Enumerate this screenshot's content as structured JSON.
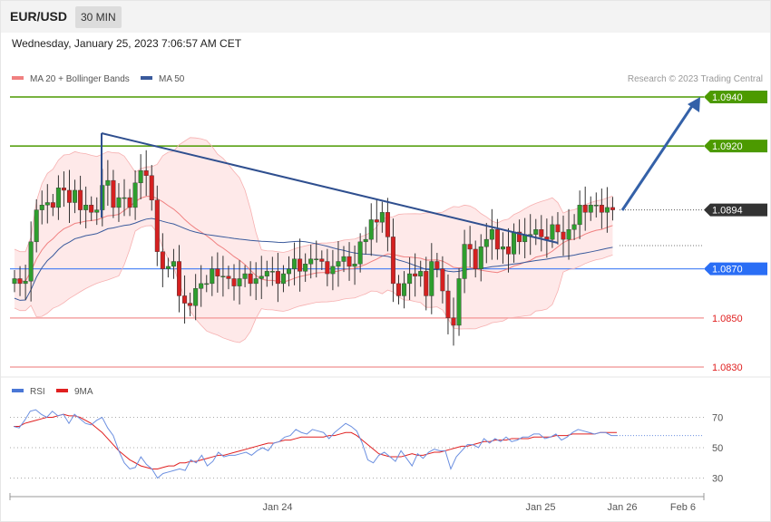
{
  "header": {
    "symbol": "EUR/USD",
    "timeframe": "30 MIN",
    "datetime": "Wednesday, January 25, 2023 7:06:57 AM CET"
  },
  "chart_data": [
    {
      "type": "candlestick",
      "title": "",
      "legend": [
        {
          "name": "MA 20 + Bollinger Bands",
          "color": "#f08080"
        },
        {
          "name": "MA 50",
          "color": "#3a5a9c"
        }
      ],
      "legend_position": "top-left",
      "credit": "Research © 2023 Trading Central",
      "y_range": [
        1.0828,
        1.095
      ],
      "x_ticks": [
        "Jan 24",
        "Jan 25",
        "Jan 26",
        "Feb 6"
      ],
      "levels": [
        {
          "value": 1.094,
          "label": "1.0940",
          "kind": "resistance",
          "color": "#4c9a00"
        },
        {
          "value": 1.092,
          "label": "1.0920",
          "kind": "resistance",
          "color": "#4c9a00"
        },
        {
          "value": 1.0894,
          "label": "1.0894",
          "kind": "last price",
          "color": "#333333"
        },
        {
          "value": 1.087,
          "label": "1.0870",
          "kind": "pivot",
          "color": "#2a6ef5"
        },
        {
          "value": 1.085,
          "label": "1.0850",
          "kind": "support",
          "color": "#e02020"
        },
        {
          "value": 1.083,
          "label": "1.0830",
          "kind": "support",
          "color": "#e02020"
        }
      ],
      "closes": [
        1.0866,
        1.0864,
        1.0865,
        1.0881,
        1.0894,
        1.0896,
        1.0897,
        1.0895,
        1.0903,
        1.0902,
        1.0897,
        1.0902,
        1.0894,
        1.0896,
        1.0893,
        1.0894,
        1.0904,
        1.0906,
        1.0895,
        1.0899,
        1.0899,
        1.0895,
        1.0905,
        1.091,
        1.0908,
        1.0898,
        1.0877,
        1.087,
        1.0871,
        1.0873,
        1.0859,
        1.0856,
        1.0855,
        1.0862,
        1.0864,
        1.0864,
        1.087,
        1.0867,
        1.0867,
        1.0866,
        1.0863,
        1.0866,
        1.0868,
        1.0864,
        1.0866,
        1.0867,
        1.0869,
        1.0869,
        1.0864,
        1.0868,
        1.087,
        1.0874,
        1.0869,
        1.0872,
        1.0874,
        1.0874,
        1.0873,
        1.0868,
        1.0871,
        1.0873,
        1.0875,
        1.0871,
        1.0872,
        1.0881,
        1.0882,
        1.089,
        1.0889,
        1.0893,
        1.0883,
        1.0864,
        1.0859,
        1.0864,
        1.0868,
        1.0867,
        1.0869,
        1.0859,
        1.0873,
        1.087,
        1.0861,
        1.085,
        1.0847,
        1.0866,
        1.088,
        1.0878,
        1.087,
        1.0879,
        1.0882,
        1.0886,
        1.0878,
        1.0879,
        1.0876,
        1.0885,
        1.0881,
        1.0884,
        1.0884,
        1.0886,
        1.0883,
        1.0882,
        1.0888,
        1.0885,
        1.0882,
        1.0886,
        1.0888,
        1.0896,
        1.0893,
        1.0896,
        1.0896,
        1.0893,
        1.0895,
        1.0894
      ],
      "rsi_panel": {
        "legend": [
          {
            "name": "RSI",
            "color": "#4a77d6"
          },
          {
            "name": "9MA",
            "color": "#e02020"
          }
        ],
        "y_ticks": [
          "70",
          "50",
          "30"
        ],
        "rsi": [
          64,
          63,
          68,
          74,
          75,
          72,
          70,
          74,
          71,
          72,
          66,
          72,
          69,
          66,
          65,
          68,
          70,
          63,
          58,
          48,
          40,
          36,
          37,
          44,
          39,
          36,
          30,
          33,
          34,
          35,
          36,
          35,
          42,
          40,
          45,
          38,
          41,
          47,
          44,
          45,
          45,
          46,
          47,
          45,
          48,
          50,
          48,
          53,
          54,
          57,
          58,
          62,
          60,
          59,
          62,
          61,
          60,
          56,
          60,
          63,
          66,
          64,
          61,
          53,
          42,
          40,
          45,
          47,
          44,
          41,
          48,
          43,
          38,
          46,
          43,
          47,
          49,
          48,
          48,
          36,
          44,
          48,
          52,
          52,
          50,
          56,
          53,
          56,
          54,
          57,
          54,
          55,
          57,
          57,
          59,
          59,
          56,
          57,
          59,
          55,
          57,
          60,
          62,
          61,
          60,
          59,
          60,
          60,
          58,
          58
        ],
        "ma9": [
          64,
          64,
          66,
          67,
          68,
          69,
          70,
          70,
          71,
          72,
          71,
          71,
          70,
          68,
          66,
          63,
          60,
          56,
          52,
          48,
          45,
          42,
          40,
          38,
          37,
          36,
          36,
          37,
          38,
          38,
          40,
          40,
          41,
          41,
          42,
          43,
          44,
          45,
          45,
          46,
          47,
          48,
          49,
          50,
          51,
          52,
          53,
          53,
          54,
          55,
          55,
          56,
          57,
          57,
          57,
          57,
          57,
          58,
          58,
          59,
          60,
          60,
          58,
          55,
          52,
          49,
          46,
          45,
          44,
          44,
          44,
          45,
          46,
          45,
          45,
          46,
          47,
          47,
          48,
          49,
          50,
          51,
          51,
          52,
          53,
          54,
          54,
          55,
          55,
          55,
          56,
          56,
          56,
          56,
          57,
          57,
          57,
          57,
          58,
          58,
          58,
          59,
          59,
          59,
          59,
          59,
          60,
          60,
          60,
          60
        ]
      }
    }
  ]
}
